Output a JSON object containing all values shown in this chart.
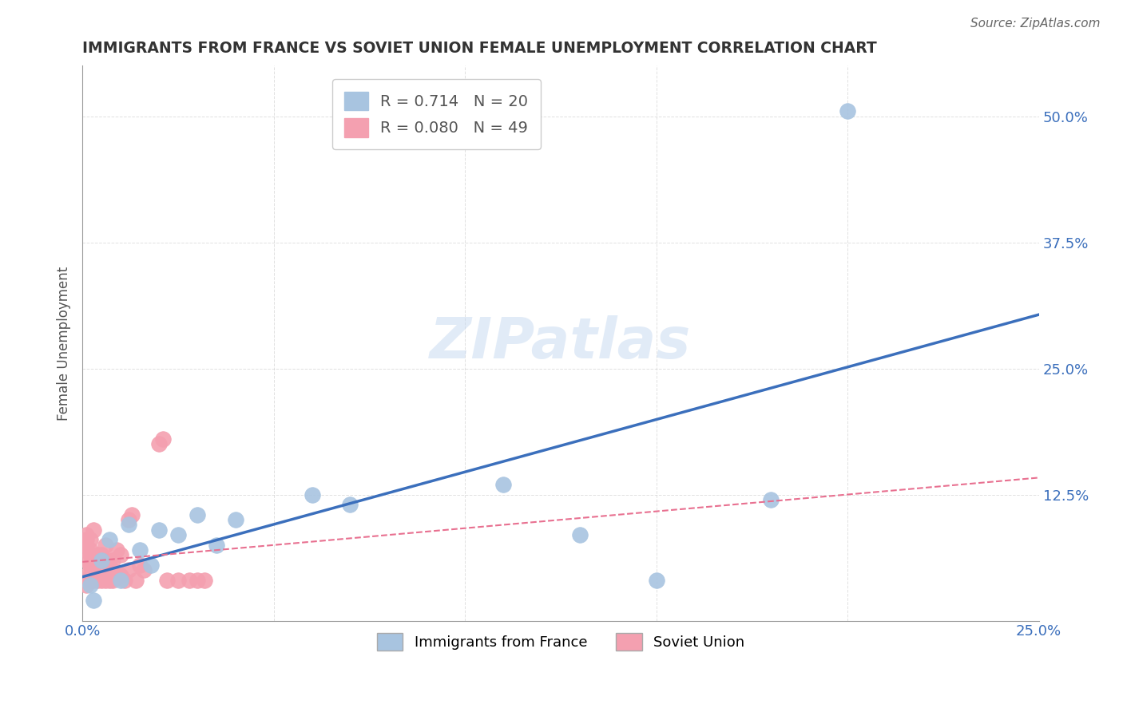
{
  "title": "IMMIGRANTS FROM FRANCE VS SOVIET UNION FEMALE UNEMPLOYMENT CORRELATION CHART",
  "source": "Source: ZipAtlas.com",
  "xlabel": "",
  "ylabel": "Female Unemployment",
  "xlim": [
    0.0,
    0.25
  ],
  "ylim": [
    0.0,
    0.55
  ],
  "xticks": [
    0.0,
    0.05,
    0.1,
    0.15,
    0.2,
    0.25
  ],
  "yticks": [
    0.0,
    0.125,
    0.25,
    0.375,
    0.5
  ],
  "ytick_labels": [
    "",
    "12.5%",
    "25.0%",
    "37.5%",
    "50.0%"
  ],
  "xtick_labels": [
    "0.0%",
    "",
    "",
    "",
    "",
    "25.0%"
  ],
  "france_R": 0.714,
  "france_N": 20,
  "soviet_R": 0.08,
  "soviet_N": 49,
  "france_color": "#a8c4e0",
  "soviet_color": "#f4a0b0",
  "france_line_color": "#3b6fbc",
  "soviet_line_color": "#e87090",
  "watermark": "ZIPatlas",
  "france_points_x": [
    0.002,
    0.003,
    0.005,
    0.007,
    0.01,
    0.012,
    0.015,
    0.018,
    0.02,
    0.025,
    0.03,
    0.035,
    0.04,
    0.06,
    0.07,
    0.11,
    0.13,
    0.15,
    0.18,
    0.2
  ],
  "france_points_y": [
    0.035,
    0.02,
    0.06,
    0.08,
    0.04,
    0.095,
    0.07,
    0.055,
    0.09,
    0.085,
    0.105,
    0.075,
    0.1,
    0.125,
    0.115,
    0.135,
    0.085,
    0.04,
    0.12,
    0.505
  ],
  "soviet_points_x": [
    0.001,
    0.001,
    0.001,
    0.001,
    0.001,
    0.001,
    0.001,
    0.002,
    0.002,
    0.002,
    0.002,
    0.002,
    0.002,
    0.003,
    0.003,
    0.003,
    0.003,
    0.004,
    0.004,
    0.004,
    0.005,
    0.005,
    0.005,
    0.006,
    0.006,
    0.006,
    0.006,
    0.007,
    0.007,
    0.008,
    0.008,
    0.009,
    0.009,
    0.01,
    0.01,
    0.011,
    0.012,
    0.012,
    0.013,
    0.014,
    0.015,
    0.016,
    0.02,
    0.021,
    0.022,
    0.025,
    0.028,
    0.03,
    0.032
  ],
  "soviet_points_y": [
    0.035,
    0.045,
    0.06,
    0.07,
    0.075,
    0.08,
    0.085,
    0.04,
    0.045,
    0.055,
    0.065,
    0.07,
    0.08,
    0.04,
    0.05,
    0.055,
    0.09,
    0.04,
    0.05,
    0.065,
    0.04,
    0.055,
    0.065,
    0.04,
    0.05,
    0.06,
    0.075,
    0.04,
    0.055,
    0.04,
    0.06,
    0.045,
    0.07,
    0.045,
    0.065,
    0.04,
    0.05,
    0.1,
    0.105,
    0.04,
    0.055,
    0.05,
    0.175,
    0.18,
    0.04,
    0.04,
    0.04,
    0.04,
    0.04
  ],
  "background_color": "#ffffff",
  "grid_color": "#cccccc"
}
